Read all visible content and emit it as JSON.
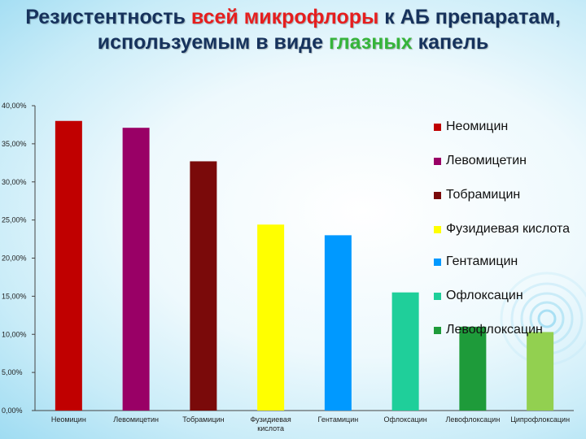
{
  "title": {
    "parts": [
      {
        "text": "Резистентность ",
        "style": "normal"
      },
      {
        "text": "всей микрофлоры",
        "style": "red"
      },
      {
        "text": " к АБ препаратам, используемым в виде ",
        "style": "normal"
      },
      {
        "text": "глазных",
        "style": "green"
      },
      {
        "text": " капель",
        "style": "normal"
      }
    ]
  },
  "colors": {
    "title_text": "#16325c",
    "title_accent_red": "#e61e1e",
    "title_accent_green": "#35b43a"
  },
  "chart_data": {
    "type": "bar",
    "categories": [
      "Неомицин",
      "Левомицетин",
      "Тобрамицин",
      "Фузидиевая кислота",
      "Гентамицин",
      "Офлоксацин",
      "Левофлоксацин",
      "Ципрофлоксацин"
    ],
    "values": [
      38.0,
      37.1,
      32.7,
      24.4,
      23.0,
      15.5,
      11.0,
      10.3
    ],
    "colors": [
      "#c00000",
      "#990066",
      "#7a0a0a",
      "#ffff00",
      "#0099ff",
      "#1fcf9a",
      "#1e9b3a",
      "#92d050"
    ],
    "y_tick_labels": [
      "0,00%",
      "5,00%",
      "10,00%",
      "15,00%",
      "20,00%",
      "25,00%",
      "30,00%",
      "35,00%",
      "40,00%"
    ],
    "ylim": [
      0,
      40
    ],
    "unit": "%",
    "grid": false,
    "legend": {
      "placement": "right",
      "entries": [
        "Неомицин",
        "Левомицетин",
        "Тобрамицин",
        "Фузидиевая кислота",
        "Гентамицин",
        "Офлоксацин",
        "Левофлоксацин"
      ]
    }
  }
}
